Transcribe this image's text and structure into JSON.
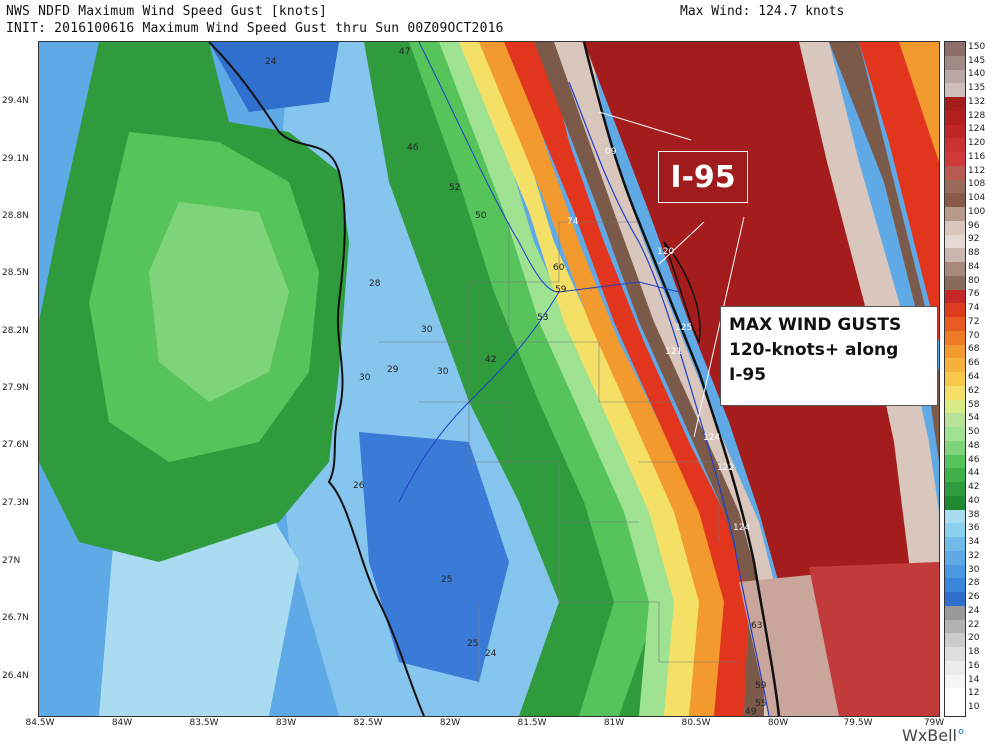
{
  "header": {
    "title_line1": "NWS NDFD Maximum Wind Speed Gust [knots]",
    "title_line2": "INIT: 2016100616 Maximum Wind Speed Gust thru Sun 00Z09OCT2016",
    "max_wind": "Max Wind: 124.7 knots"
  },
  "axes": {
    "lat_labels": [
      "29.4N",
      "29.1N",
      "28.8N",
      "28.5N",
      "28.2N",
      "27.9N",
      "27.6N",
      "27.3N",
      "27N",
      "26.7N",
      "26.4N"
    ],
    "lon_labels": [
      "84.5W",
      "84W",
      "83.5W",
      "83W",
      "82.5W",
      "82W",
      "81.5W",
      "81W",
      "80.5W",
      "80W",
      "79.5W",
      "79W"
    ]
  },
  "colorbar": {
    "labels": [
      "150",
      "145",
      "140",
      "135",
      "132",
      "128",
      "124",
      "120",
      "116",
      "112",
      "108",
      "104",
      "100",
      "96",
      "92",
      "88",
      "84",
      "80",
      "76",
      "74",
      "72",
      "70",
      "68",
      "66",
      "64",
      "62",
      "58",
      "54",
      "50",
      "48",
      "46",
      "44",
      "42",
      "40",
      "38",
      "36",
      "34",
      "32",
      "30",
      "28",
      "26",
      "24",
      "22",
      "20",
      "18",
      "16",
      "14",
      "12",
      "10"
    ]
  },
  "map_values": [
    {
      "text": "24"
    },
    {
      "text": "47"
    },
    {
      "text": "46"
    },
    {
      "text": "52"
    },
    {
      "text": "50"
    },
    {
      "text": "09"
    },
    {
      "text": "74"
    },
    {
      "text": "120"
    },
    {
      "text": "60"
    },
    {
      "text": "59"
    },
    {
      "text": "28"
    },
    {
      "text": "53"
    },
    {
      "text": "30"
    },
    {
      "text": "42"
    },
    {
      "text": "125"
    },
    {
      "text": "121"
    },
    {
      "text": "30"
    },
    {
      "text": "29"
    },
    {
      "text": "30"
    },
    {
      "text": "124"
    },
    {
      "text": "122"
    },
    {
      "text": "26"
    },
    {
      "text": "124"
    },
    {
      "text": "25"
    },
    {
      "text": "63"
    },
    {
      "text": "25"
    },
    {
      "text": "24"
    },
    {
      "text": "59"
    },
    {
      "text": "55"
    },
    {
      "text": "49"
    }
  ],
  "annotations": {
    "highway_label": "I-95",
    "callout_line1": "MAX WIND GUSTS",
    "callout_line2": "120-knots+ along",
    "callout_line3": "I-95"
  },
  "branding": {
    "logo_main": "WxBell",
    "logo_dot": "°"
  },
  "colors": {
    "deep_blue": "#2f6fce",
    "blue": "#5fa9e6",
    "light_blue": "#a9dcf1",
    "dark_green": "#2f9b3c",
    "green": "#56c35b",
    "light_green": "#9ee292",
    "yellow": "#f4e067",
    "orange": "#f39a2e",
    "red": "#e2351e",
    "dark_red": "#a51c1c",
    "brown": "#7b5a4a",
    "pale": "#d9c6bd"
  }
}
